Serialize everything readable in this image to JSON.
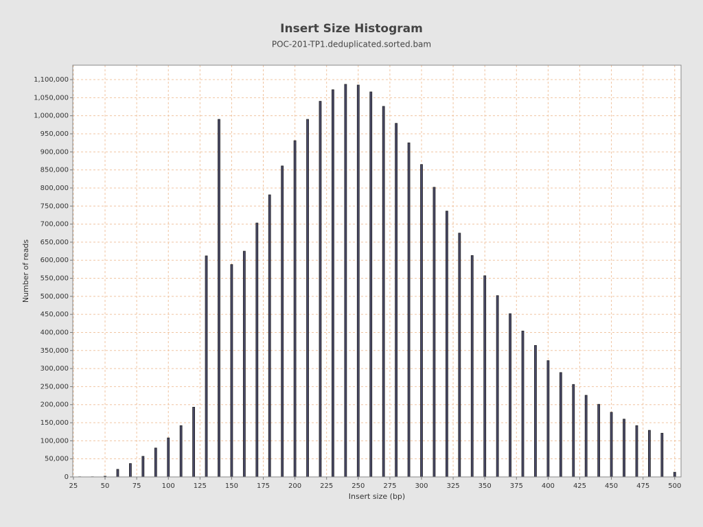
{
  "chart_data": {
    "type": "bar",
    "title": "Insert Size Histogram",
    "subtitle": "POC-201-TP1.deduplicated.sorted.bam",
    "x_label": "Insert size (bp)",
    "y_label": "Number of reads",
    "x": [
      30,
      40,
      50,
      60,
      70,
      80,
      90,
      100,
      110,
      120,
      130,
      140,
      150,
      160,
      170,
      180,
      190,
      200,
      210,
      220,
      230,
      240,
      250,
      260,
      270,
      280,
      290,
      300,
      310,
      320,
      330,
      340,
      350,
      360,
      370,
      380,
      390,
      400,
      410,
      420,
      430,
      440,
      450,
      460,
      470,
      480,
      490,
      500
    ],
    "values": [
      500,
      500,
      2000,
      21000,
      37000,
      57000,
      80000,
      108000,
      142000,
      193000,
      612000,
      990000,
      588000,
      625000,
      703000,
      781000,
      861000,
      931000,
      990000,
      1040000,
      1072000,
      1087000,
      1085000,
      1066000,
      1026000,
      979000,
      925000,
      865000,
      802000,
      736000,
      675000,
      613000,
      557000,
      502000,
      452000,
      404000,
      364000,
      322000,
      289000,
      256000,
      226000,
      201000,
      179000,
      160000,
      142000,
      129000,
      121000,
      13000
    ],
    "color": "#4a4a68",
    "xlim": [
      24.5,
      505
    ],
    "ylim": [
      0,
      1140000
    ],
    "xticks": [
      25,
      50,
      75,
      100,
      125,
      150,
      175,
      200,
      225,
      250,
      275,
      300,
      325,
      350,
      375,
      400,
      425,
      450,
      475,
      500
    ],
    "yticks": [
      0,
      {
        "value": 50000,
        "label": "50,000"
      },
      {
        "value": 100000,
        "label": "100,000"
      },
      {
        "value": 150000,
        "label": "150,000"
      },
      {
        "value": 200000,
        "label": "200,000"
      },
      {
        "value": 250000,
        "label": "250,000"
      },
      {
        "value": 300000,
        "label": "300,000"
      },
      {
        "value": 350000,
        "label": "350,000"
      },
      {
        "value": 400000,
        "label": "400,000"
      },
      {
        "value": 450000,
        "label": "450,000"
      },
      {
        "value": 500000,
        "label": "500,000"
      },
      {
        "value": 550000,
        "label": "550,000"
      },
      {
        "value": 600000,
        "label": "600,000"
      },
      {
        "value": 650000,
        "label": "650,000"
      },
      {
        "value": 700000,
        "label": "700,000"
      },
      {
        "value": 750000,
        "label": "750,000"
      },
      {
        "value": 800000,
        "label": "800,000"
      },
      {
        "value": 850000,
        "label": "850,000"
      },
      {
        "value": 900000,
        "label": "900,000"
      },
      {
        "value": 950000,
        "label": "950,000"
      },
      {
        "value": 1000000,
        "label": "1,000,000"
      },
      {
        "value": 1050000,
        "label": "1,050,000"
      },
      {
        "value": 1100000,
        "label": "1,100,000"
      }
    ],
    "grid": true
  }
}
